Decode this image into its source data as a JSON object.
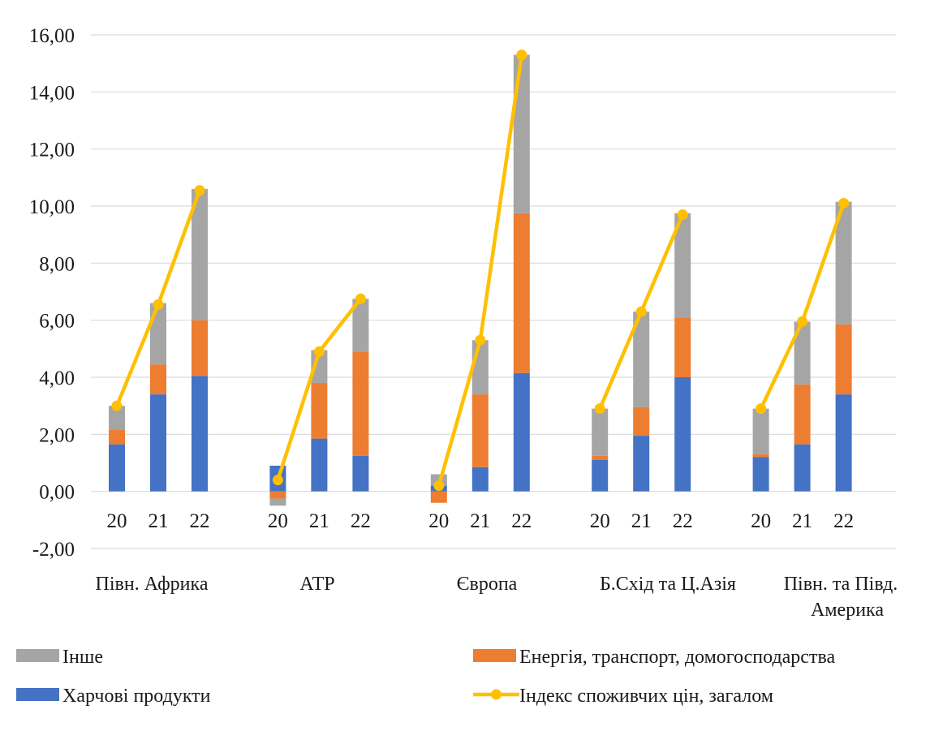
{
  "chart_data": {
    "type": "bar",
    "subtype": "stacked-with-line",
    "groups": [
      "Півн. Африка",
      "АТР",
      "Європа",
      "Б.Схід та Ц.Азія",
      "Півн. та Півд. Америка"
    ],
    "sub_categories": [
      "20",
      "21",
      "22"
    ],
    "ylim": [
      -2,
      16
    ],
    "y_ticks": [
      "-2,00",
      "0,00",
      "2,00",
      "4,00",
      "6,00",
      "8,00",
      "10,00",
      "12,00",
      "14,00",
      "16,00"
    ],
    "grid": true,
    "legend_position": "bottom",
    "series": [
      {
        "name": "Харчові продукти",
        "kind": "bar",
        "color": "#4472c4",
        "values": [
          [
            1.65,
            3.4,
            4.05
          ],
          [
            0.9,
            1.85,
            1.25
          ],
          [
            0.2,
            0.85,
            4.15
          ],
          [
            1.1,
            1.95,
            4.0
          ],
          [
            1.2,
            1.65,
            3.4
          ]
        ]
      },
      {
        "name": "Енергія, транспорт, домогосподарства",
        "kind": "bar",
        "color": "#ed7d31",
        "values": [
          [
            0.5,
            1.05,
            1.95
          ],
          [
            -0.25,
            1.95,
            3.65
          ],
          [
            -0.4,
            2.55,
            5.6
          ],
          [
            0.15,
            1.0,
            2.1
          ],
          [
            0.1,
            2.1,
            2.45
          ]
        ]
      },
      {
        "name": "Інше",
        "kind": "bar",
        "color": "#a5a5a5",
        "values": [
          [
            0.85,
            2.15,
            4.6
          ],
          [
            -0.25,
            1.15,
            1.85
          ],
          [
            0.4,
            1.9,
            5.55
          ],
          [
            1.65,
            3.35,
            3.65
          ],
          [
            1.6,
            2.2,
            4.3
          ]
        ]
      },
      {
        "name": "Індекс споживчих цін, загалом",
        "kind": "line",
        "color": "#ffc000",
        "values": [
          [
            3.0,
            6.55,
            10.55
          ],
          [
            0.4,
            4.9,
            6.75
          ],
          [
            0.2,
            5.3,
            15.3
          ],
          [
            2.9,
            6.3,
            9.7
          ],
          [
            2.9,
            5.95,
            10.1
          ]
        ]
      }
    ],
    "legend": [
      {
        "label": "Інше",
        "color": "#a5a5a5",
        "kind": "bar"
      },
      {
        "label": "Енергія, транспорт, домогосподарства",
        "color": "#ed7d31",
        "kind": "bar"
      },
      {
        "label": "Харчові продукти",
        "color": "#4472c4",
        "kind": "bar"
      },
      {
        "label": "Індекс споживчих цін, загалом",
        "color": "#ffc000",
        "kind": "line"
      }
    ]
  }
}
